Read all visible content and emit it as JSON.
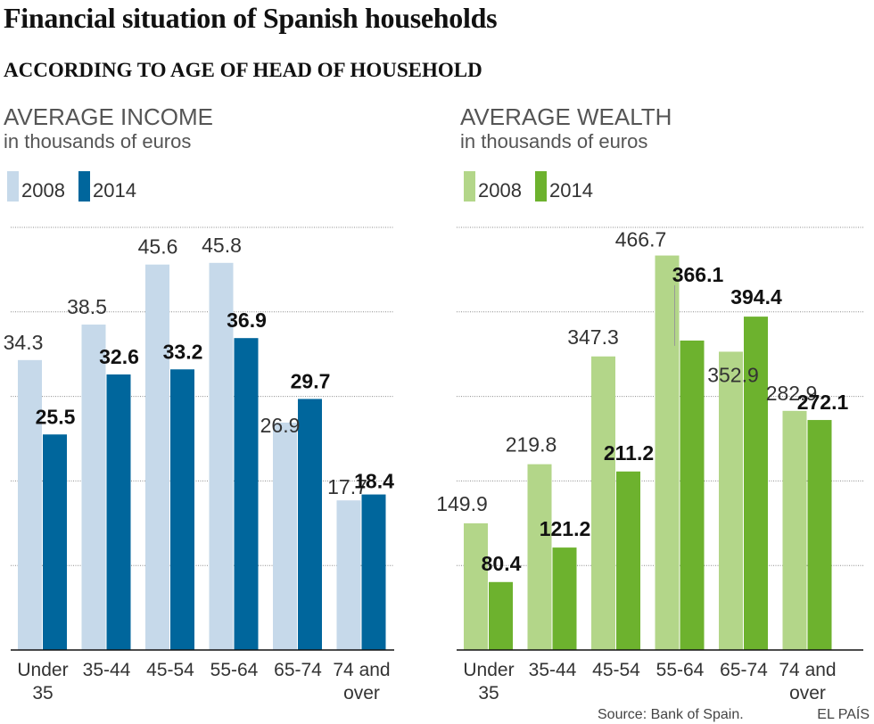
{
  "title": "Financial situation of Spanish households",
  "subtitle": "ACCORDING TO AGE OF HEAD OF HOUSEHOLD",
  "source": "Source: Bank of Spain.",
  "credit": "EL PAÍS",
  "colors": {
    "income_2008": "#c6d9ea",
    "income_2014": "#00669c",
    "wealth_2008": "#b3d689",
    "wealth_2014": "#6db22e",
    "gridline": "#8c8c8c",
    "baseline": "#111111",
    "leader": "#999999"
  },
  "chart_data": [
    {
      "type": "bar",
      "title": "AVERAGE INCOME",
      "unit_label": "in thousands of euros",
      "xlabel": "",
      "ylabel": "",
      "ylim": [
        0,
        50
      ],
      "grid": true,
      "gridlines_at": [
        10,
        20,
        30,
        40,
        50
      ],
      "legend": "top-left",
      "categories": [
        [
          "Under",
          "35"
        ],
        [
          "35-44"
        ],
        [
          "45-54"
        ],
        [
          "55-64"
        ],
        [
          "65-74"
        ],
        [
          "74 and",
          "over"
        ]
      ],
      "series": [
        {
          "name": "2008",
          "values": [
            34.3,
            38.5,
            45.6,
            45.8,
            26.9,
            17.7
          ]
        },
        {
          "name": "2014",
          "values": [
            25.5,
            32.6,
            33.2,
            36.9,
            29.7,
            18.4
          ]
        }
      ]
    },
    {
      "type": "bar",
      "title": "AVERAGE WEALTH",
      "unit_label": "in thousands of euros",
      "xlabel": "",
      "ylabel": "",
      "ylim": [
        0,
        500
      ],
      "grid": true,
      "gridlines_at": [
        100,
        200,
        300,
        400,
        500
      ],
      "legend": "top-left",
      "categories": [
        [
          "Under",
          "35"
        ],
        [
          "35-44"
        ],
        [
          "45-54"
        ],
        [
          "55-64"
        ],
        [
          "65-74"
        ],
        [
          "74 and",
          "over"
        ]
      ],
      "series": [
        {
          "name": "2008",
          "values": [
            149.9,
            219.8,
            347.3,
            466.7,
            352.9,
            282.9
          ]
        },
        {
          "name": "2014",
          "values": [
            80.4,
            121.2,
            211.2,
            366.1,
            394.4,
            272.1
          ]
        }
      ]
    }
  ]
}
